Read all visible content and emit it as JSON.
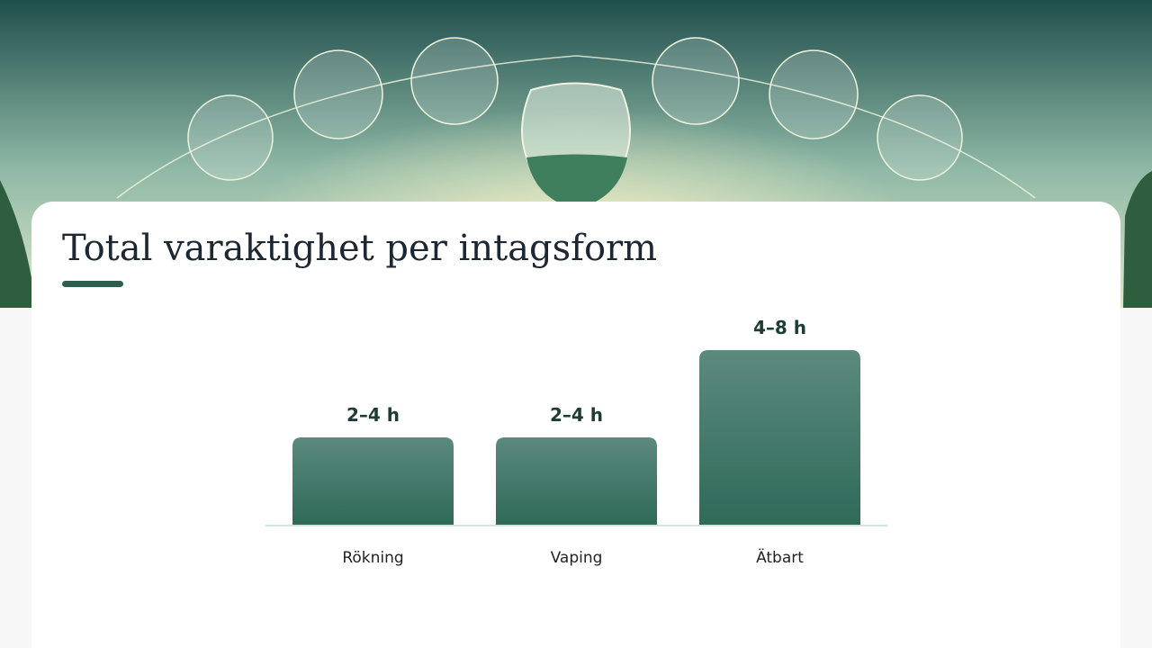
{
  "chart_data": {
    "type": "bar",
    "title": "Total varaktighet per intagsform",
    "categories": [
      "Rökning",
      "Vaping",
      "Ätbart"
    ],
    "values": [
      4,
      4,
      8
    ],
    "value_labels": [
      "2–4 h",
      "2–4 h",
      "4–8 h"
    ],
    "color": "#2f6a59"
  }
}
